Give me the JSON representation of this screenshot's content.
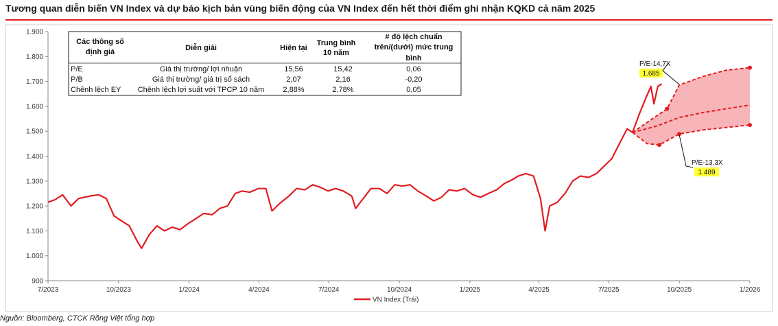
{
  "title": "Tương quan diễn biến VN Index và dự báo kịch bản vùng biến động của VN Index đến hết thời điểm ghi nhận KQKD cả năm 2025",
  "source": "Nguồn: Bloomberg, CTCK Rồng Việt tổng hợp",
  "colors": {
    "accent": "#e11d22",
    "band": "#f7a8ad",
    "highlight": "#ffff33"
  },
  "table": {
    "headers": [
      "Các thông số định giá",
      "Diễn giải",
      "Hiện tại",
      "Trung bình 10 năm",
      "# độ lệch chuẩn trên/(dưới) mức trung bình"
    ],
    "rows": [
      [
        "P/E",
        "Giá thị trường/ lợi nhuận",
        "15,56",
        "15,42",
        "0,06"
      ],
      [
        "P/B",
        "Giá thị trường/ giá trị sổ sách",
        "2,07",
        "2,16",
        "-0,20"
      ],
      [
        "Chênh lệch EY",
        "Chênh lệch lợi suất với TPCP 10 năm",
        "2,88%",
        "2,78%",
        "0,05"
      ]
    ]
  },
  "annotations": {
    "upper": {
      "label": "P/E-14,7X",
      "value": "1.685"
    },
    "lower": {
      "label": "P/E-13,3X",
      "value": "1.489"
    }
  },
  "chart_data": {
    "type": "line",
    "xlim": [
      "2023-07-01",
      "2026-01-01"
    ],
    "ylim": [
      900,
      1900
    ],
    "yticks": [
      900,
      1000,
      1100,
      1200,
      1300,
      1400,
      1500,
      1600,
      1700,
      1800,
      1900
    ],
    "ytick_labels": [
      "900",
      "1.000",
      "1.100",
      "1.200",
      "1.300",
      "1.400",
      "1.500",
      "1.600",
      "1.700",
      "1.800",
      "1.900"
    ],
    "xtick_labels": [
      {
        "date": "2023-07-01",
        "label": "7/2023"
      },
      {
        "date": "2023-10-01",
        "label": "10/2023"
      },
      {
        "date": "2024-01-01",
        "label": "1/2024"
      },
      {
        "date": "2024-04-01",
        "label": "4/2024"
      },
      {
        "date": "2024-07-01",
        "label": "7/2024"
      },
      {
        "date": "2024-10-01",
        "label": "10/2024"
      },
      {
        "date": "2025-01-01",
        "label": "1/2025"
      },
      {
        "date": "2025-04-01",
        "label": "4/2025"
      },
      {
        "date": "2025-07-01",
        "label": "7/2025"
      },
      {
        "date": "2025-10-01",
        "label": "10/2025"
      },
      {
        "date": "2026-01-01",
        "label": "1/2026"
      }
    ],
    "legend_position": "bottom",
    "series": [
      {
        "name": "VN Index (Trái)",
        "points": [
          [
            "2023-07-01",
            1215
          ],
          [
            "2023-07-10",
            1225
          ],
          [
            "2023-07-20",
            1245
          ],
          [
            "2023-07-31",
            1200
          ],
          [
            "2023-08-10",
            1230
          ],
          [
            "2023-08-25",
            1240
          ],
          [
            "2023-09-05",
            1245
          ],
          [
            "2023-09-15",
            1230
          ],
          [
            "2023-09-25",
            1160
          ],
          [
            "2023-10-05",
            1140
          ],
          [
            "2023-10-15",
            1120
          ],
          [
            "2023-10-25",
            1060
          ],
          [
            "2023-10-31",
            1030
          ],
          [
            "2023-11-10",
            1085
          ],
          [
            "2023-11-20",
            1120
          ],
          [
            "2023-11-30",
            1100
          ],
          [
            "2023-12-10",
            1115
          ],
          [
            "2023-12-20",
            1105
          ],
          [
            "2023-12-31",
            1130
          ],
          [
            "2024-01-10",
            1150
          ],
          [
            "2024-01-20",
            1170
          ],
          [
            "2024-01-31",
            1165
          ],
          [
            "2024-02-10",
            1190
          ],
          [
            "2024-02-20",
            1200
          ],
          [
            "2024-03-01",
            1250
          ],
          [
            "2024-03-10",
            1260
          ],
          [
            "2024-03-20",
            1255
          ],
          [
            "2024-03-31",
            1270
          ],
          [
            "2024-04-10",
            1270
          ],
          [
            "2024-04-18",
            1180
          ],
          [
            "2024-04-28",
            1210
          ],
          [
            "2024-05-10",
            1240
          ],
          [
            "2024-05-20",
            1270
          ],
          [
            "2024-05-31",
            1265
          ],
          [
            "2024-06-10",
            1285
          ],
          [
            "2024-06-20",
            1275
          ],
          [
            "2024-06-30",
            1260
          ],
          [
            "2024-07-10",
            1270
          ],
          [
            "2024-07-20",
            1260
          ],
          [
            "2024-07-31",
            1240
          ],
          [
            "2024-08-05",
            1190
          ],
          [
            "2024-08-15",
            1230
          ],
          [
            "2024-08-25",
            1270
          ],
          [
            "2024-09-05",
            1270
          ],
          [
            "2024-09-15",
            1250
          ],
          [
            "2024-09-25",
            1285
          ],
          [
            "2024-10-05",
            1280
          ],
          [
            "2024-10-15",
            1285
          ],
          [
            "2024-10-25",
            1260
          ],
          [
            "2024-11-05",
            1240
          ],
          [
            "2024-11-15",
            1220
          ],
          [
            "2024-11-25",
            1235
          ],
          [
            "2024-12-05",
            1265
          ],
          [
            "2024-12-15",
            1260
          ],
          [
            "2024-12-25",
            1270
          ],
          [
            "2025-01-05",
            1245
          ],
          [
            "2025-01-15",
            1235
          ],
          [
            "2025-01-25",
            1250
          ],
          [
            "2025-02-05",
            1265
          ],
          [
            "2025-02-15",
            1290
          ],
          [
            "2025-02-25",
            1305
          ],
          [
            "2025-03-05",
            1320
          ],
          [
            "2025-03-15",
            1330
          ],
          [
            "2025-03-25",
            1320
          ],
          [
            "2025-04-03",
            1230
          ],
          [
            "2025-04-09",
            1100
          ],
          [
            "2025-04-15",
            1200
          ],
          [
            "2025-04-25",
            1215
          ],
          [
            "2025-05-05",
            1250
          ],
          [
            "2025-05-15",
            1300
          ],
          [
            "2025-05-25",
            1320
          ],
          [
            "2025-06-05",
            1315
          ],
          [
            "2025-06-15",
            1330
          ],
          [
            "2025-06-25",
            1360
          ],
          [
            "2025-07-05",
            1390
          ],
          [
            "2025-07-15",
            1450
          ],
          [
            "2025-07-25",
            1510
          ],
          [
            "2025-08-01",
            1495
          ],
          [
            "2025-08-10",
            1570
          ],
          [
            "2025-08-18",
            1630
          ],
          [
            "2025-08-25",
            1680
          ],
          [
            "2025-08-29",
            1610
          ],
          [
            "2025-09-03",
            1680
          ],
          [
            "2025-09-08",
            1690
          ]
        ]
      }
    ],
    "forecast_band": {
      "upper": [
        [
          "2025-08-01",
          1495
        ],
        [
          "2025-09-15",
          1590
        ],
        [
          "2025-10-01",
          1685
        ],
        [
          "2025-11-01",
          1720
        ],
        [
          "2025-12-01",
          1745
        ],
        [
          "2026-01-01",
          1755
        ]
      ],
      "mid": [
        [
          "2025-08-01",
          1495
        ],
        [
          "2025-09-01",
          1520
        ],
        [
          "2025-10-01",
          1555
        ],
        [
          "2025-11-01",
          1575
        ],
        [
          "2025-12-01",
          1590
        ],
        [
          "2026-01-01",
          1605
        ]
      ],
      "lower": [
        [
          "2025-08-01",
          1495
        ],
        [
          "2025-08-20",
          1450
        ],
        [
          "2025-09-05",
          1445
        ],
        [
          "2025-10-01",
          1489
        ],
        [
          "2025-11-01",
          1505
        ],
        [
          "2025-12-01",
          1515
        ],
        [
          "2026-01-01",
          1525
        ]
      ]
    }
  }
}
